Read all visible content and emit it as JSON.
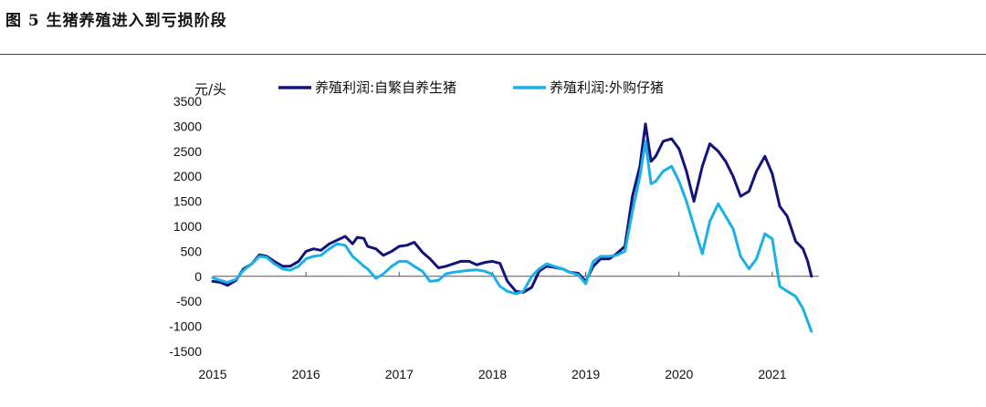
{
  "figure": {
    "title": "图 5  生猪养殖进入到亏损阶段"
  },
  "chart_data": {
    "type": "line",
    "ylabel": "元/头",
    "ylim": [
      -1500,
      3500
    ],
    "yticks": [
      -1500,
      -1000,
      -500,
      0,
      500,
      1000,
      1500,
      2000,
      2500,
      3000,
      3500
    ],
    "xlim": [
      2015.0,
      2021.5
    ],
    "xticks": [
      "2015",
      "2016",
      "2017",
      "2018",
      "2019",
      "2020",
      "2021"
    ],
    "legend_position": "top",
    "series": [
      {
        "name": "养殖利润:自繁自养生猪",
        "color": "#13137a",
        "points": [
          [
            2015.0,
            -100
          ],
          [
            2015.08,
            -120
          ],
          [
            2015.16,
            -180
          ],
          [
            2015.25,
            -80
          ],
          [
            2015.33,
            150
          ],
          [
            2015.42,
            250
          ],
          [
            2015.5,
            430
          ],
          [
            2015.58,
            400
          ],
          [
            2015.66,
            300
          ],
          [
            2015.75,
            200
          ],
          [
            2015.83,
            200
          ],
          [
            2015.92,
            300
          ],
          [
            2016.0,
            500
          ],
          [
            2016.08,
            550
          ],
          [
            2016.16,
            520
          ],
          [
            2016.25,
            650
          ],
          [
            2016.33,
            720
          ],
          [
            2016.42,
            800
          ],
          [
            2016.5,
            650
          ],
          [
            2016.55,
            780
          ],
          [
            2016.62,
            760
          ],
          [
            2016.66,
            600
          ],
          [
            2016.75,
            550
          ],
          [
            2016.83,
            420
          ],
          [
            2016.92,
            500
          ],
          [
            2017.0,
            600
          ],
          [
            2017.08,
            620
          ],
          [
            2017.16,
            680
          ],
          [
            2017.25,
            480
          ],
          [
            2017.33,
            350
          ],
          [
            2017.42,
            170
          ],
          [
            2017.5,
            200
          ],
          [
            2017.58,
            250
          ],
          [
            2017.66,
            300
          ],
          [
            2017.75,
            300
          ],
          [
            2017.83,
            230
          ],
          [
            2017.92,
            280
          ],
          [
            2018.0,
            300
          ],
          [
            2018.08,
            260
          ],
          [
            2018.16,
            -100
          ],
          [
            2018.25,
            -300
          ],
          [
            2018.33,
            -320
          ],
          [
            2018.42,
            -220
          ],
          [
            2018.5,
            100
          ],
          [
            2018.58,
            200
          ],
          [
            2018.66,
            180
          ],
          [
            2018.75,
            150
          ],
          [
            2018.83,
            80
          ],
          [
            2018.92,
            60
          ],
          [
            2019.0,
            -100
          ],
          [
            2019.08,
            200
          ],
          [
            2019.16,
            350
          ],
          [
            2019.25,
            350
          ],
          [
            2019.33,
            450
          ],
          [
            2019.42,
            600
          ],
          [
            2019.5,
            1600
          ],
          [
            2019.58,
            2200
          ],
          [
            2019.64,
            3050
          ],
          [
            2019.7,
            2300
          ],
          [
            2019.75,
            2400
          ],
          [
            2019.83,
            2700
          ],
          [
            2019.92,
            2750
          ],
          [
            2020.0,
            2550
          ],
          [
            2020.08,
            2100
          ],
          [
            2020.16,
            1500
          ],
          [
            2020.25,
            2200
          ],
          [
            2020.33,
            2650
          ],
          [
            2020.42,
            2500
          ],
          [
            2020.5,
            2300
          ],
          [
            2020.58,
            2000
          ],
          [
            2020.66,
            1600
          ],
          [
            2020.75,
            1700
          ],
          [
            2020.83,
            2100
          ],
          [
            2020.92,
            2400
          ],
          [
            2021.0,
            2050
          ],
          [
            2021.08,
            1400
          ],
          [
            2021.16,
            1200
          ],
          [
            2021.25,
            700
          ],
          [
            2021.33,
            550
          ],
          [
            2021.38,
            300
          ],
          [
            2021.42,
            0
          ]
        ]
      },
      {
        "name": "养殖利润:外购仔猪",
        "color": "#19b1e6",
        "points": [
          [
            2015.0,
            -30
          ],
          [
            2015.08,
            -80
          ],
          [
            2015.16,
            -120
          ],
          [
            2015.25,
            -60
          ],
          [
            2015.33,
            120
          ],
          [
            2015.42,
            250
          ],
          [
            2015.5,
            400
          ],
          [
            2015.58,
            380
          ],
          [
            2015.66,
            250
          ],
          [
            2015.75,
            150
          ],
          [
            2015.83,
            120
          ],
          [
            2015.92,
            200
          ],
          [
            2016.0,
            350
          ],
          [
            2016.08,
            400
          ],
          [
            2016.16,
            420
          ],
          [
            2016.25,
            550
          ],
          [
            2016.33,
            650
          ],
          [
            2016.42,
            620
          ],
          [
            2016.5,
            400
          ],
          [
            2016.55,
            320
          ],
          [
            2016.62,
            200
          ],
          [
            2016.66,
            150
          ],
          [
            2016.75,
            -40
          ],
          [
            2016.83,
            50
          ],
          [
            2016.92,
            200
          ],
          [
            2017.0,
            300
          ],
          [
            2017.08,
            300
          ],
          [
            2017.16,
            200
          ],
          [
            2017.25,
            100
          ],
          [
            2017.33,
            -100
          ],
          [
            2017.42,
            -80
          ],
          [
            2017.5,
            50
          ],
          [
            2017.58,
            80
          ],
          [
            2017.66,
            100
          ],
          [
            2017.75,
            120
          ],
          [
            2017.83,
            130
          ],
          [
            2017.92,
            100
          ],
          [
            2018.0,
            40
          ],
          [
            2018.08,
            -200
          ],
          [
            2018.16,
            -300
          ],
          [
            2018.25,
            -350
          ],
          [
            2018.33,
            -300
          ],
          [
            2018.42,
            0
          ],
          [
            2018.5,
            150
          ],
          [
            2018.58,
            250
          ],
          [
            2018.66,
            200
          ],
          [
            2018.75,
            150
          ],
          [
            2018.83,
            80
          ],
          [
            2018.92,
            30
          ],
          [
            2019.0,
            -150
          ],
          [
            2019.08,
            300
          ],
          [
            2019.16,
            400
          ],
          [
            2019.25,
            400
          ],
          [
            2019.33,
            420
          ],
          [
            2019.42,
            500
          ],
          [
            2019.5,
            1300
          ],
          [
            2019.58,
            2000
          ],
          [
            2019.64,
            2700
          ],
          [
            2019.7,
            1850
          ],
          [
            2019.75,
            1900
          ],
          [
            2019.83,
            2100
          ],
          [
            2019.92,
            2200
          ],
          [
            2020.0,
            1900
          ],
          [
            2020.08,
            1500
          ],
          [
            2020.16,
            1000
          ],
          [
            2020.25,
            450
          ],
          [
            2020.33,
            1100
          ],
          [
            2020.42,
            1450
          ],
          [
            2020.5,
            1200
          ],
          [
            2020.58,
            950
          ],
          [
            2020.66,
            400
          ],
          [
            2020.75,
            150
          ],
          [
            2020.83,
            350
          ],
          [
            2020.92,
            850
          ],
          [
            2021.0,
            750
          ],
          [
            2021.08,
            -200
          ],
          [
            2021.16,
            -300
          ],
          [
            2021.25,
            -400
          ],
          [
            2021.33,
            -650
          ],
          [
            2021.38,
            -900
          ],
          [
            2021.42,
            -1100
          ]
        ]
      }
    ]
  }
}
